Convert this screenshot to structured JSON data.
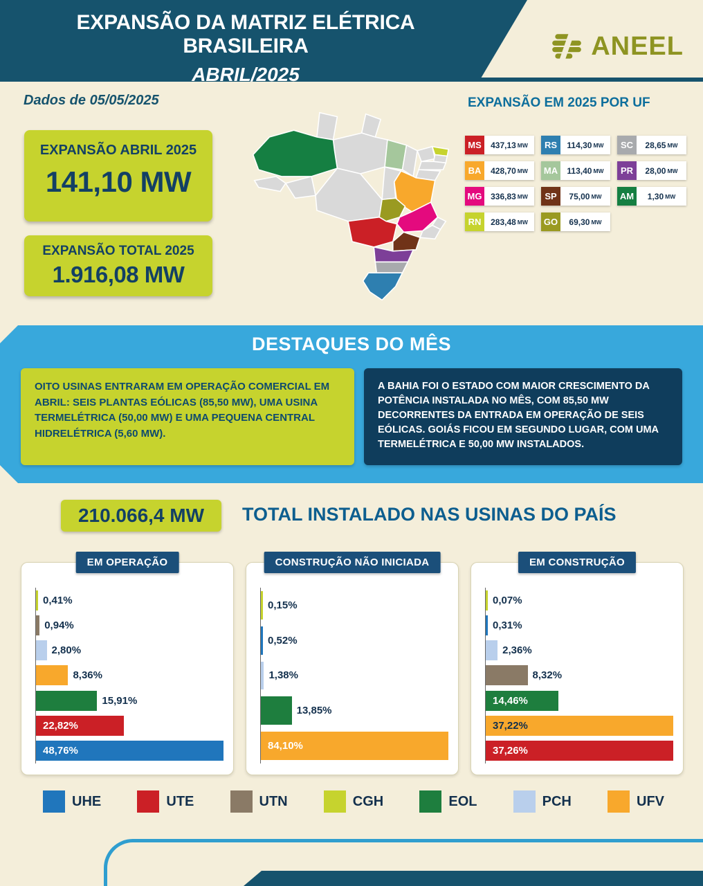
{
  "header": {
    "title_line1": "EXPANSÃO DA MATRIZ ELÉTRICA BRASILEIRA",
    "title_line2": "ABRIL/2025",
    "brand": "ANEEL"
  },
  "date_note": "Dados de 05/05/2025",
  "stats": [
    {
      "label": "EXPANSÃO ABRIL 2025",
      "value": "141,10 MW"
    },
    {
      "label": "EXPANSÃO TOTAL 2025",
      "value": "1.916,08 MW"
    }
  ],
  "uf_panel": {
    "title": "EXPANSÃO EM 2025 POR UF",
    "items": [
      {
        "uf": "MS",
        "value": "437,13",
        "unit": "MW",
        "color": "#cb2026"
      },
      {
        "uf": "BA",
        "value": "428,70",
        "unit": "MW",
        "color": "#f8a82c"
      },
      {
        "uf": "MG",
        "value": "336,83",
        "unit": "MW",
        "color": "#e40a7e"
      },
      {
        "uf": "RN",
        "value": "283,48",
        "unit": "MW",
        "color": "#c6d32e"
      },
      {
        "uf": "RS",
        "value": "114,30",
        "unit": "MW",
        "color": "#2e7fb0"
      },
      {
        "uf": "MA",
        "value": "113,40",
        "unit": "MW",
        "color": "#a5c79c"
      },
      {
        "uf": "SP",
        "value": "75,00",
        "unit": "MW",
        "color": "#703318"
      },
      {
        "uf": "GO",
        "value": "69,30",
        "unit": "MW",
        "color": "#9a9a21"
      },
      {
        "uf": "SC",
        "value": "28,65",
        "unit": "MW",
        "color": "#a8aaad"
      },
      {
        "uf": "PR",
        "value": "28,00",
        "unit": "MW",
        "color": "#7d3f98"
      },
      {
        "uf": "AM",
        "value": "1,30",
        "unit": "MW",
        "color": "#157f42"
      }
    ]
  },
  "map": {
    "default_color": "#d9d9d9",
    "state_colors": {
      "AM": "#157f42",
      "MA": "#a5c79c",
      "RN": "#c6d32e",
      "BA": "#f8a82c",
      "GO": "#9a9a21",
      "MG": "#e40a7e",
      "MS": "#cb2026",
      "SP": "#703318",
      "PR": "#7d3f98",
      "SC": "#a8aaad",
      "RS": "#2e7fb0"
    }
  },
  "highlights": {
    "title": "DESTAQUES DO MÊS",
    "left_segments": [
      {
        "t": "OITO USINAS",
        "b": true
      },
      {
        "t": " ENTRARAM EM OPERAÇÃO COMERCIAL EM ABRIL: SEIS PLANTAS EÓLICAS (85,50 MW), UMA USINA TERMELÉTRICA (50,00 MW) E UMA PEQUENA CENTRAL HIDRELÉTRICA (5,60 MW).",
        "b": false
      }
    ],
    "right_segments": [
      {
        "t": "A ",
        "b": false
      },
      {
        "t": "BAHIA",
        "b": true
      },
      {
        "t": " FOI O ESTADO COM MAIOR CRESCIMENTO DA POTÊNCIA INSTALADA NO MÊS, COM ",
        "b": false
      },
      {
        "t": "85,50 MW",
        "b": true
      },
      {
        "t": " DECORRENTES DA ENTRADA EM OPERAÇÃO DE SEIS EÓLICAS. ",
        "b": false
      },
      {
        "t": "GOIÁS",
        "b": true
      },
      {
        "t": " FICOU EM SEGUNDO LUGAR, COM UMA TERMELÉTRICA E ",
        "b": false
      },
      {
        "t": "50,00 MW",
        "b": true
      },
      {
        "t": " INSTALADOS.",
        "b": false
      }
    ]
  },
  "total": {
    "value": "210.066,4 MW",
    "title": "TOTAL INSTALADO NAS USINAS DO PAÍS"
  },
  "chart_data": [
    {
      "type": "bar",
      "orientation": "horizontal",
      "title": "EM OPERAÇÃO",
      "unit": "%",
      "bars": [
        {
          "category": "CGH",
          "label": "0,41%",
          "value": 0.41,
          "color": "#c6d32e",
          "inside": false
        },
        {
          "category": "UTN",
          "label": "0,94%",
          "value": 0.94,
          "color": "#8a7a66",
          "inside": false
        },
        {
          "category": "PCH",
          "label": "2,80%",
          "value": 2.8,
          "color": "#b9cfec",
          "inside": false
        },
        {
          "category": "UFV",
          "label": "8,36%",
          "value": 8.36,
          "color": "#f8a82c",
          "inside": false
        },
        {
          "category": "EOL",
          "label": "15,91%",
          "value": 15.91,
          "color": "#1e7e3e",
          "inside": false
        },
        {
          "category": "UTE",
          "label": "22,82%",
          "value": 22.82,
          "color": "#cb2026",
          "inside": true,
          "label_color": "#ffffff"
        },
        {
          "category": "UHE",
          "label": "48,76%",
          "value": 48.76,
          "color": "#2076bc",
          "inside": true,
          "label_color": "#ffffff"
        }
      ]
    },
    {
      "type": "bar",
      "orientation": "horizontal",
      "title": "CONSTRUÇÃO NÃO INICIADA",
      "unit": "%",
      "bars": [
        {
          "category": "CGH",
          "label": "0,15%",
          "value": 0.15,
          "color": "#c6d32e",
          "inside": false
        },
        {
          "category": "UHE",
          "label": "0,52%",
          "value": 0.52,
          "color": "#2076bc",
          "inside": false
        },
        {
          "category": "PCH",
          "label": "1,38%",
          "value": 1.38,
          "color": "#b9cfec",
          "inside": false
        },
        {
          "category": "EOL",
          "label": "13,85%",
          "value": 13.85,
          "color": "#1e7e3e",
          "inside": false
        },
        {
          "category": "UFV",
          "label": "84,10%",
          "value": 84.1,
          "color": "#f8a82c",
          "inside": true,
          "label_color": "#ffffff"
        }
      ]
    },
    {
      "type": "bar",
      "orientation": "horizontal",
      "title": "EM CONSTRUÇÃO",
      "unit": "%",
      "bars": [
        {
          "category": "CGH",
          "label": "0,07%",
          "value": 0.07,
          "color": "#c6d32e",
          "inside": false
        },
        {
          "category": "UHE",
          "label": "0,31%",
          "value": 0.31,
          "color": "#2076bc",
          "inside": false
        },
        {
          "category": "PCH",
          "label": "2,36%",
          "value": 2.36,
          "color": "#b9cfec",
          "inside": false
        },
        {
          "category": "UTN",
          "label": "8,32%",
          "value": 8.32,
          "color": "#8a7a66",
          "inside": false
        },
        {
          "category": "EOL",
          "label": "14,46%",
          "value": 14.46,
          "color": "#1e7e3e",
          "inside": true,
          "label_color": "#ffffff"
        },
        {
          "category": "UFV",
          "label": "37,22%",
          "value": 37.22,
          "color": "#f8a82c",
          "inside": true,
          "label_color": "#13304d"
        },
        {
          "category": "UTE",
          "label": "37,26%",
          "value": 37.26,
          "color": "#cb2026",
          "inside": true,
          "label_color": "#ffffff"
        }
      ]
    }
  ],
  "legend": [
    {
      "label": "UHE",
      "color": "#2076bc"
    },
    {
      "label": "UTE",
      "color": "#cb2026"
    },
    {
      "label": "UTN",
      "color": "#8a7a66"
    },
    {
      "label": "CGH",
      "color": "#c6d32e"
    },
    {
      "label": "EOL",
      "color": "#1e7e3e"
    },
    {
      "label": "PCH",
      "color": "#b9cfec"
    },
    {
      "label": "UFV",
      "color": "#f8a82c"
    }
  ]
}
